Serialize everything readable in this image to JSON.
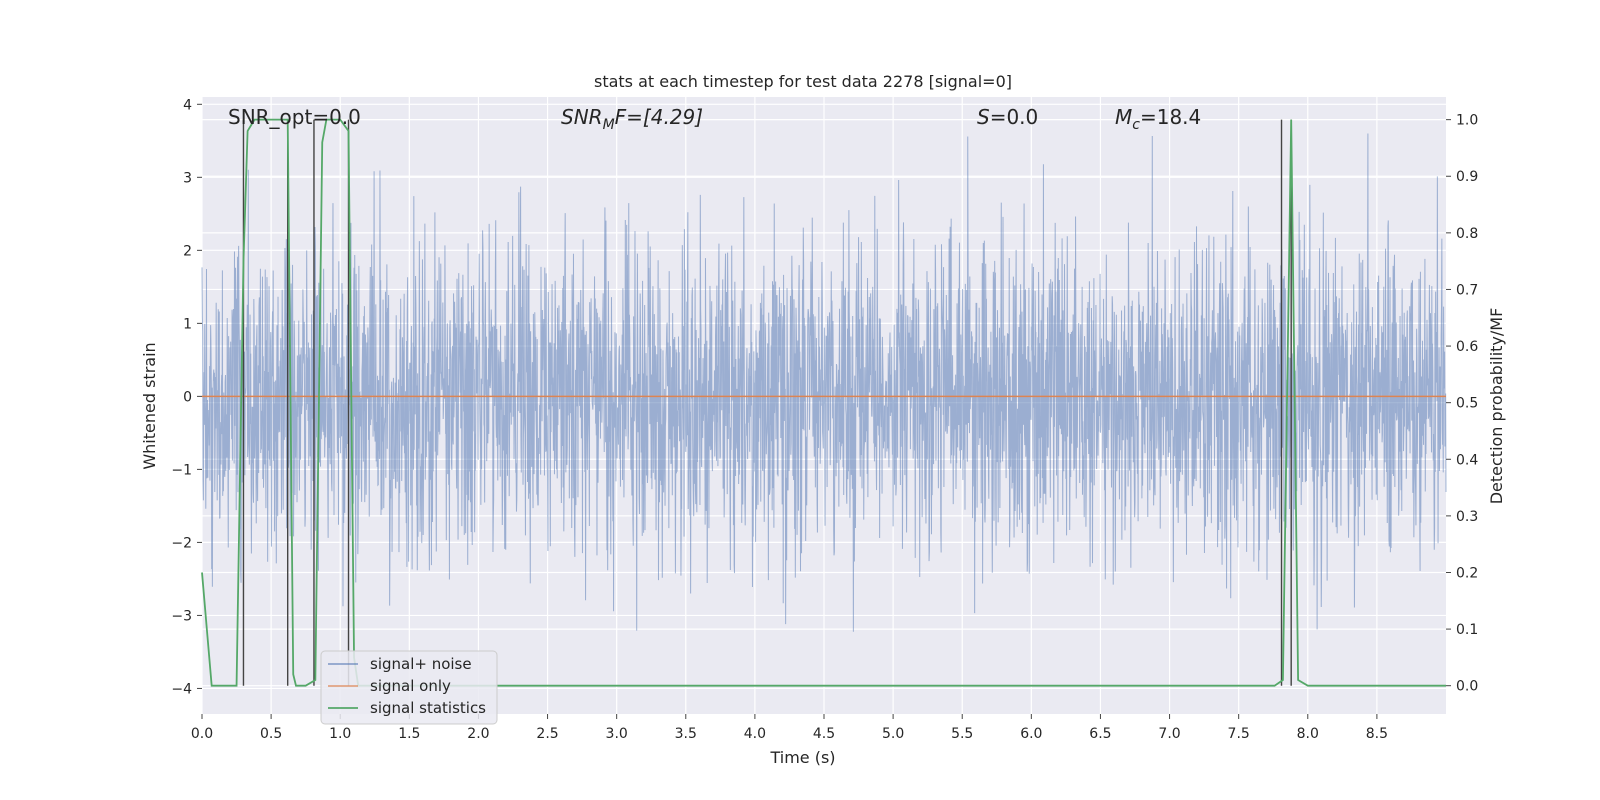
{
  "chart_data": {
    "type": "line",
    "title": "stats at each timestep for test data 2278 [signal=0]",
    "xlabel": "Time (s)",
    "ylabel_left": "Whitened strain",
    "ylabel_right": "Detection probability/MF",
    "xlim": [
      0.0,
      9.0
    ],
    "ylim_left": [
      -4.35,
      4.1
    ],
    "ylim_right": [
      -0.05,
      1.04
    ],
    "grid": true,
    "legend_position": "lower-left",
    "x_ticks": [
      "0.0",
      "0.5",
      "1.0",
      "1.5",
      "2.0",
      "2.5",
      "3.0",
      "3.5",
      "4.0",
      "4.5",
      "5.0",
      "5.5",
      "6.0",
      "6.5",
      "7.0",
      "7.5",
      "8.0",
      "8.5"
    ],
    "y_ticks_left": [
      "4",
      "3",
      "2",
      "1",
      "0",
      "−1",
      "−2",
      "−3",
      "−4"
    ],
    "y_ticks_right": [
      "1.0",
      "0.9",
      "0.8",
      "0.7",
      "0.6",
      "0.5",
      "0.4",
      "0.3",
      "0.2",
      "0.1",
      "0.0"
    ],
    "annotations": {
      "snr_opt": "SNR_opt=0.0",
      "snr_mf_name": "SNR",
      "snr_mf_sub": "M",
      "snr_mf_rest": "F=[4.29]",
      "s_name": "S",
      "s_rest": "=0.0",
      "mc_name": "M",
      "mc_sub": "c",
      "mc_rest": "=18.4"
    },
    "series": [
      {
        "name": "signal+ noise",
        "color": "#4c72b0",
        "description": "whitened noisy strain, roughly ±1.8 amplitude, spikes to about ±3.6"
      },
      {
        "name": "signal only",
        "color": "#dd8452",
        "values": "constant 0 across the full time range"
      },
      {
        "name": "signal statistics",
        "color": "#55a868",
        "points": [
          [
            0.0,
            0.2
          ],
          [
            0.07,
            0.0
          ],
          [
            0.25,
            0.0
          ],
          [
            0.3,
            0.75
          ],
          [
            0.33,
            0.98
          ],
          [
            0.38,
            1.0
          ],
          [
            0.62,
            1.0
          ],
          [
            0.66,
            0.02
          ],
          [
            0.68,
            0.0
          ],
          [
            0.75,
            0.0
          ],
          [
            0.82,
            0.01
          ],
          [
            0.87,
            0.96
          ],
          [
            0.9,
            1.0
          ],
          [
            1.0,
            1.0
          ],
          [
            1.06,
            0.98
          ],
          [
            1.1,
            0.05
          ],
          [
            1.13,
            0.0
          ],
          [
            7.76,
            0.0
          ],
          [
            7.82,
            0.01
          ],
          [
            7.88,
            1.0
          ],
          [
            7.93,
            0.01
          ],
          [
            8.0,
            0.0
          ],
          [
            9.0,
            0.0
          ]
        ]
      }
    ],
    "vertical_markers_s": [
      0.3,
      0.62,
      0.81,
      1.06,
      7.81,
      7.88
    ],
    "colors": {
      "plot_bg": "#eaeaf2",
      "grid": "#ffffff",
      "noise": "#4c72b0",
      "signal": "#dd8452",
      "stats": "#55a868",
      "marker": "#444444",
      "text": "#262626"
    }
  }
}
